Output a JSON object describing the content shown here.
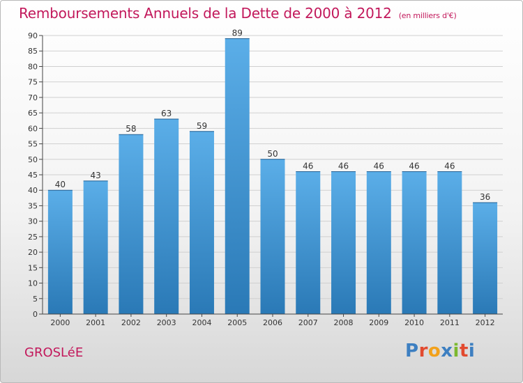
{
  "header": {
    "title": "Remboursements Annuels de la Dette de 2000 à 2012",
    "subtitle": "(en milliers d'€)"
  },
  "footer": {
    "commune": "GROSLéE",
    "logo": "Proxiti"
  },
  "colors": {
    "accent": "#c2185b",
    "bar_top": "#5baee8",
    "bar_bottom": "#2a79b6",
    "logo": [
      "#3d7fc1",
      "#e24a2f",
      "#f2a11b",
      "#3d7fc1",
      "#7cb82f",
      "#e24a2f",
      "#3d7fc1"
    ]
  },
  "chart_data": {
    "type": "bar",
    "title": "Remboursements Annuels de la Dette de 2000 à 2012",
    "categories": [
      "2000",
      "2001",
      "2002",
      "2003",
      "2004",
      "2005",
      "2006",
      "2007",
      "2008",
      "2009",
      "2010",
      "2011",
      "2012"
    ],
    "values": [
      40,
      43,
      58,
      63,
      59,
      89,
      50,
      46,
      46,
      46,
      46,
      46,
      36
    ],
    "ylim": [
      0,
      90
    ],
    "yticks": [
      0,
      5,
      10,
      15,
      20,
      25,
      30,
      35,
      40,
      45,
      50,
      55,
      60,
      65,
      70,
      75,
      80,
      85,
      90
    ],
    "grid": true,
    "data_labels": true
  }
}
